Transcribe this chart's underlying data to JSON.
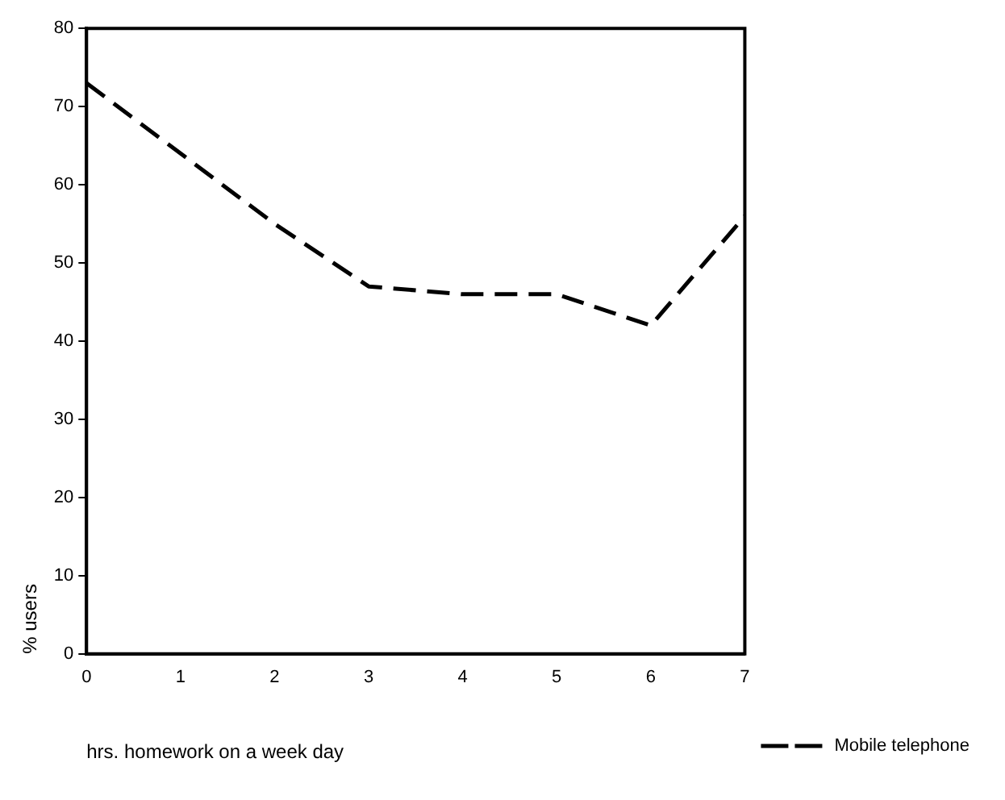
{
  "chart_data": {
    "type": "line",
    "xlabel": "hrs. homework on a week day",
    "ylabel": "% users",
    "x": [
      0,
      1,
      2,
      3,
      4,
      5,
      6,
      7
    ],
    "series": [
      {
        "name": "Mobile telephone",
        "color": "#000000",
        "values": [
          73,
          64,
          55,
          47,
          46,
          46,
          42,
          56
        ]
      }
    ],
    "xlim": [
      0,
      7
    ],
    "xticks": [
      0,
      1,
      2,
      3,
      4,
      5,
      6,
      7
    ],
    "ylim": [
      0,
      80
    ],
    "yticks": [
      0,
      10,
      20,
      30,
      40,
      50,
      60,
      70,
      80
    ],
    "grid": false,
    "legend": "bottom right",
    "marker": "none",
    "line_style": "dashed"
  }
}
